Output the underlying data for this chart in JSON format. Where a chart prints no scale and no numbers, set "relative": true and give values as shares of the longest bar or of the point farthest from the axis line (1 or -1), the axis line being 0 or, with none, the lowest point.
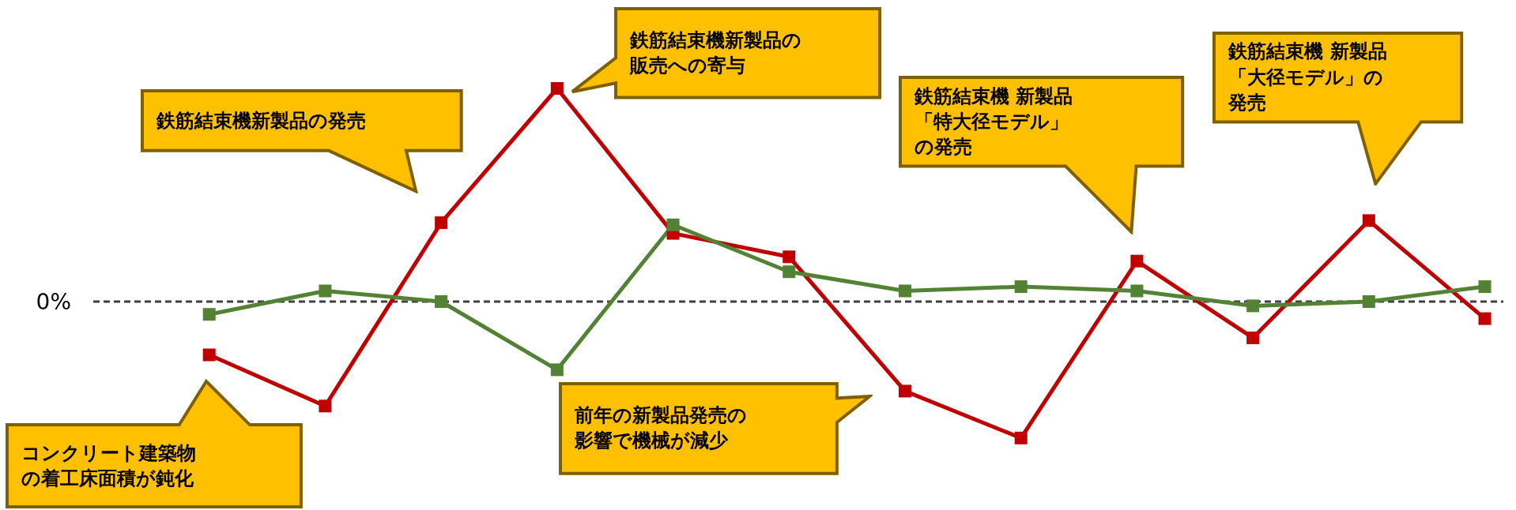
{
  "chart_data": {
    "type": "line",
    "relative": true,
    "marker": "square",
    "line_style": "solid",
    "categories": [
      null,
      null,
      null,
      null,
      null,
      null,
      null,
      null,
      null,
      null,
      null,
      null
    ],
    "series": [
      {
        "color": "#c00000",
        "values": [
          -0.25,
          -0.49,
          0.37,
          1,
          0.32,
          0.21,
          -0.42,
          -0.64,
          0.19,
          -0.17,
          0.38,
          -0.08
        ]
      },
      {
        "color": "#548235",
        "values": [
          -0.06,
          0.05,
          0.0,
          -0.32,
          0.36,
          0.14,
          0.05,
          0.07,
          0.05,
          -0.02,
          0.0,
          0.07
        ]
      }
    ],
    "ref_lines": [
      {
        "axis": "y",
        "value": 0,
        "label": "0%",
        "color": "#404040",
        "line_style": "dashed"
      }
    ],
    "annotations": [
      "鉄筋結束機新製品の発売",
      "鉄筋結束機新製品の販売への寄与",
      "鉄筋結束機 新製品「特大径モデル」の発売",
      "鉄筋結束機 新製品「大径モデル」の発売",
      "コンクリート建築物の着工床面積が鈍化",
      "前年の新製品発売の影響で機械が減少"
    ]
  }
}
